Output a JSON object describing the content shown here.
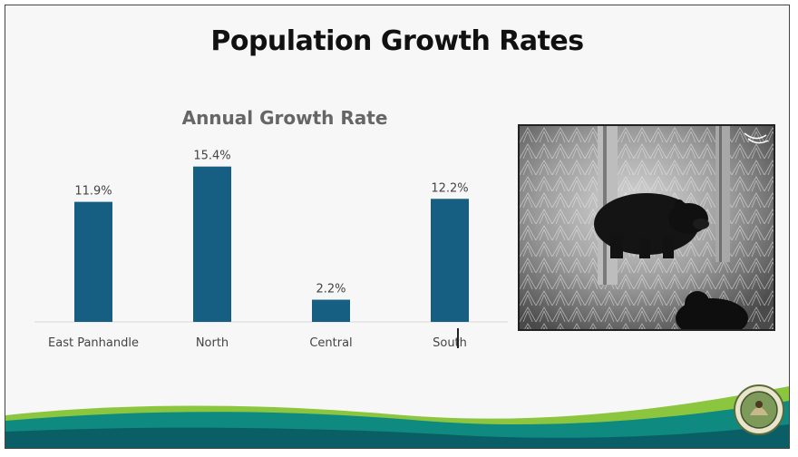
{
  "slide": {
    "title": "Population Growth Rates"
  },
  "chart_data": {
    "type": "bar",
    "title": "Annual Growth Rate",
    "categories": [
      "East Panhandle",
      "North",
      "Central",
      "South"
    ],
    "values": [
      11.9,
      15.4,
      2.2,
      12.2
    ],
    "value_labels": [
      "11.9%",
      "15.4%",
      "2.2%",
      "12.2%"
    ],
    "unit": "%",
    "ylim": [
      0,
      16
    ],
    "grid": false,
    "bar_color": "#175e83"
  },
  "photo": {
    "subject": "trail camera night image of black bears",
    "icon": "bear-photo"
  },
  "colors": {
    "wave_green": "#8cc63f",
    "wave_teal": "#0f8a80",
    "wave_dark": "#0a5f66",
    "axis": "#d9d9d9"
  }
}
